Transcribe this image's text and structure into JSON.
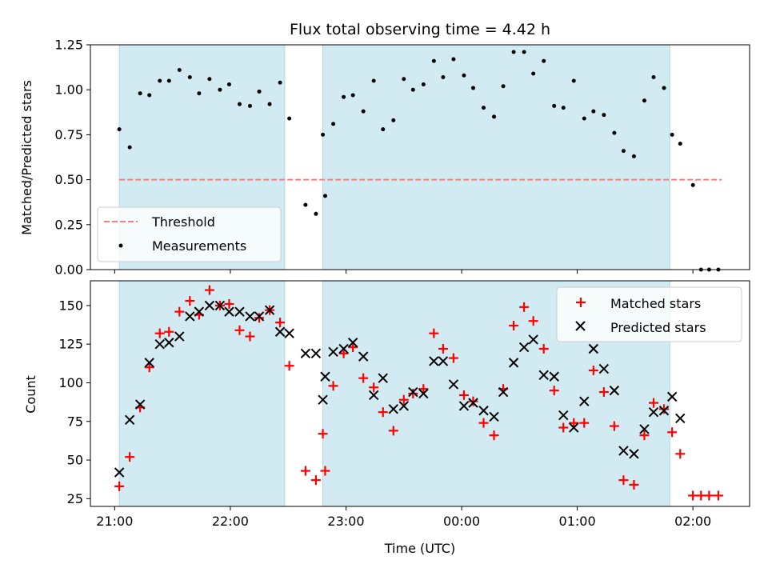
{
  "title": "Flux total observing time = 4.42 h",
  "xlabel": "Time (UTC)",
  "x_tick_labels": [
    "21:00",
    "22:00",
    "23:00",
    "00:00",
    "01:00",
    "02:00"
  ],
  "colors": {
    "shade": "#add8e6",
    "threshold": "#f08080",
    "measurement": "#000000",
    "matched": "#ff0000",
    "predicted": "#000000"
  },
  "chart_data": [
    {
      "type": "scatter",
      "ylabel": "Matched/Predicted stars",
      "x_unit": "UTC time (hours after 21:00 on the first day)",
      "xlim": [
        -0.21,
        5.49
      ],
      "ylim": [
        0.0,
        1.25
      ],
      "y_ticks": [
        0.0,
        0.25,
        0.5,
        0.75,
        1.0,
        1.25
      ],
      "y_tick_labels": [
        "0.00",
        "0.25",
        "0.50",
        "0.75",
        "1.00",
        "1.25"
      ],
      "legend_position": "lower-left",
      "shaded_intervals": [
        [
          0.04,
          1.47
        ],
        [
          1.8,
          4.8
        ]
      ],
      "threshold": {
        "name": "Threshold",
        "y": 0.5,
        "x_range": [
          0.04,
          5.25
        ]
      },
      "series": [
        {
          "name": "Measurements",
          "x": [
            0.04,
            0.13,
            0.22,
            0.3,
            0.39,
            0.47,
            0.56,
            0.65,
            0.73,
            0.82,
            0.91,
            0.99,
            1.08,
            1.17,
            1.25,
            1.34,
            1.43,
            1.51,
            1.65,
            1.74,
            1.82,
            1.8,
            1.89,
            1.98,
            2.06,
            2.15,
            2.24,
            2.32,
            2.41,
            2.5,
            2.58,
            2.67,
            2.76,
            2.84,
            2.93,
            3.02,
            3.1,
            3.19,
            3.28,
            3.36,
            3.45,
            3.54,
            3.62,
            3.71,
            3.8,
            3.88,
            3.97,
            4.06,
            4.14,
            4.23,
            4.32,
            4.4,
            4.49,
            4.58,
            4.66,
            4.75,
            4.82,
            4.89,
            5.0,
            5.07,
            5.14,
            5.22
          ],
          "y": [
            0.78,
            0.68,
            0.98,
            0.97,
            1.05,
            1.05,
            1.11,
            1.07,
            0.98,
            1.06,
            1.0,
            1.03,
            0.92,
            0.91,
            0.99,
            0.92,
            1.04,
            0.84,
            0.36,
            0.31,
            0.41,
            0.75,
            0.81,
            0.96,
            0.97,
            0.88,
            1.05,
            0.78,
            0.83,
            1.06,
            1.0,
            1.03,
            1.16,
            1.07,
            1.17,
            1.08,
            1.01,
            0.9,
            0.85,
            1.02,
            1.21,
            1.21,
            1.09,
            1.16,
            0.91,
            0.9,
            1.05,
            0.84,
            0.88,
            0.86,
            0.76,
            0.66,
            0.63,
            0.94,
            1.07,
            1.01,
            0.75,
            0.7,
            0.47,
            0.0,
            0.0,
            0.0
          ]
        }
      ]
    },
    {
      "type": "scatter",
      "ylabel": "Count",
      "x_unit": "UTC time (hours after 21:00 on the first day)",
      "xlim": [
        -0.21,
        5.49
      ],
      "ylim": [
        20,
        166
      ],
      "y_ticks": [
        25,
        50,
        75,
        100,
        125,
        150
      ],
      "y_tick_labels": [
        "25",
        "50",
        "75",
        "100",
        "125",
        "150"
      ],
      "legend_position": "upper-right",
      "shaded_intervals": [
        [
          0.04,
          1.47
        ],
        [
          1.8,
          4.8
        ]
      ],
      "series": [
        {
          "name": "Matched stars",
          "marker": "plus",
          "x": [
            0.04,
            0.13,
            0.22,
            0.3,
            0.39,
            0.47,
            0.56,
            0.65,
            0.73,
            0.82,
            0.91,
            0.99,
            1.08,
            1.17,
            1.25,
            1.34,
            1.43,
            1.51,
            1.65,
            1.74,
            1.82,
            1.8,
            1.89,
            1.98,
            2.06,
            2.15,
            2.24,
            2.32,
            2.41,
            2.5,
            2.58,
            2.67,
            2.76,
            2.84,
            2.93,
            3.02,
            3.1,
            3.19,
            3.28,
            3.36,
            3.45,
            3.54,
            3.62,
            3.71,
            3.8,
            3.88,
            3.97,
            4.06,
            4.14,
            4.23,
            4.32,
            4.4,
            4.49,
            4.58,
            4.66,
            4.75,
            4.82,
            4.89,
            5.0,
            5.07,
            5.14,
            5.22
          ],
          "y": [
            33,
            52,
            84,
            110,
            132,
            133,
            146,
            153,
            144,
            160,
            150,
            151,
            134,
            130,
            142,
            147,
            139,
            111,
            43,
            37,
            43,
            67,
            98,
            119,
            123,
            103,
            97,
            81,
            69,
            89,
            93,
            96,
            132,
            122,
            116,
            92,
            88,
            74,
            66,
            96,
            137,
            149,
            140,
            122,
            95,
            71,
            74,
            74,
            108,
            94,
            72,
            37,
            34,
            66,
            87,
            83,
            68,
            54,
            27,
            27,
            27,
            27
          ]
        },
        {
          "name": "Predicted stars",
          "marker": "x",
          "x": [
            0.04,
            0.13,
            0.22,
            0.3,
            0.39,
            0.47,
            0.56,
            0.65,
            0.73,
            0.82,
            0.91,
            0.99,
            1.08,
            1.17,
            1.25,
            1.34,
            1.43,
            1.51,
            1.65,
            1.74,
            1.82,
            1.8,
            1.89,
            1.98,
            2.06,
            2.15,
            2.24,
            2.32,
            2.41,
            2.5,
            2.58,
            2.67,
            2.76,
            2.84,
            2.93,
            3.02,
            3.1,
            3.19,
            3.28,
            3.36,
            3.45,
            3.54,
            3.62,
            3.71,
            3.8,
            3.88,
            3.97,
            4.06,
            4.14,
            4.23,
            4.32,
            4.4,
            4.49,
            4.58,
            4.66,
            4.75,
            4.82,
            4.89
          ],
          "y": [
            42,
            76,
            86,
            113,
            125,
            126,
            130,
            143,
            146,
            150,
            150,
            146,
            146,
            143,
            143,
            147,
            133,
            132,
            119,
            119,
            104,
            89,
            120,
            122,
            126,
            117,
            92,
            103,
            83,
            85,
            94,
            93,
            114,
            114,
            99,
            85,
            87,
            82,
            78,
            94,
            113,
            123,
            128,
            105,
            104,
            79,
            71,
            88,
            122,
            109,
            95,
            56,
            54,
            70,
            81,
            82,
            91,
            77
          ]
        }
      ]
    }
  ]
}
